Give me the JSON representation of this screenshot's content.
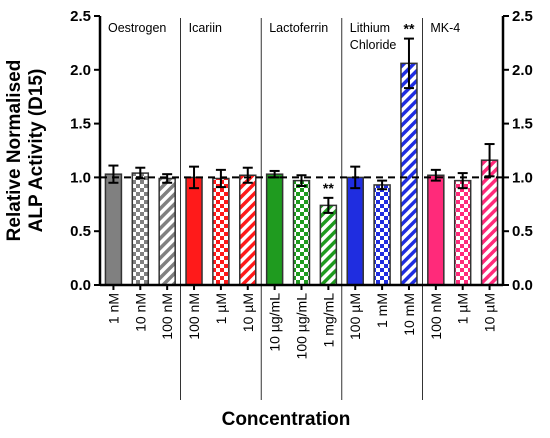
{
  "chart_data": {
    "type": "bar",
    "title": "",
    "xlabel": "Concentration",
    "ylabel_lines": [
      "Relative Normalised",
      "ALP Activity (D15)"
    ],
    "ylim": [
      0,
      2.5
    ],
    "yticks": [
      "0.0",
      "0.5",
      "1.0",
      "1.5",
      "2.0",
      "2.5"
    ],
    "y_axis_mirrored_right": true,
    "reference_line": 1.0,
    "patterns": [
      "solid",
      "checker",
      "diagonal"
    ],
    "groups": [
      {
        "name": "Oestrogen",
        "name_lines": [
          "Oestrogen"
        ],
        "color": "#808080",
        "categories": [
          "1 nM",
          "10 nM",
          "100 nM"
        ],
        "values": [
          1.03,
          1.04,
          0.99
        ],
        "errors": [
          0.08,
          0.05,
          0.04
        ],
        "significance": [
          "",
          "",
          ""
        ]
      },
      {
        "name": "Icariin",
        "name_lines": [
          "Icariin"
        ],
        "color": "#ff1a1a",
        "categories": [
          "100 nM",
          "1 µM",
          "10 µM"
        ],
        "values": [
          1.0,
          0.99,
          1.02
        ],
        "errors": [
          0.1,
          0.08,
          0.07
        ],
        "significance": [
          "",
          "",
          ""
        ]
      },
      {
        "name": "Lactoferrin",
        "name_lines": [
          "Lactoferrin"
        ],
        "color": "#1f9b1f",
        "categories": [
          "10 µg/mL",
          "100 µg/mL",
          "1 mg/mL"
        ],
        "values": [
          1.03,
          0.97,
          0.74
        ],
        "errors": [
          0.03,
          0.05,
          0.07
        ],
        "significance": [
          "",
          "",
          "**"
        ]
      },
      {
        "name": "Lithium Chloride",
        "name_lines": [
          "Lithium",
          "Chloride"
        ],
        "color": "#1f2de0",
        "categories": [
          "100 µM",
          "1 mM",
          "10 mM"
        ],
        "values": [
          1.0,
          0.93,
          2.06
        ],
        "errors": [
          0.1,
          0.04,
          0.23
        ],
        "significance": [
          "",
          "",
          "**"
        ]
      },
      {
        "name": "MK-4",
        "name_lines": [
          "MK-4"
        ],
        "color": "#ff2a7a",
        "categories": [
          "100 nM",
          "1 µM",
          "10 µM"
        ],
        "values": [
          1.02,
          0.97,
          1.16
        ],
        "errors": [
          0.05,
          0.07,
          0.15
        ],
        "significance": [
          "",
          "",
          ""
        ]
      }
    ]
  }
}
